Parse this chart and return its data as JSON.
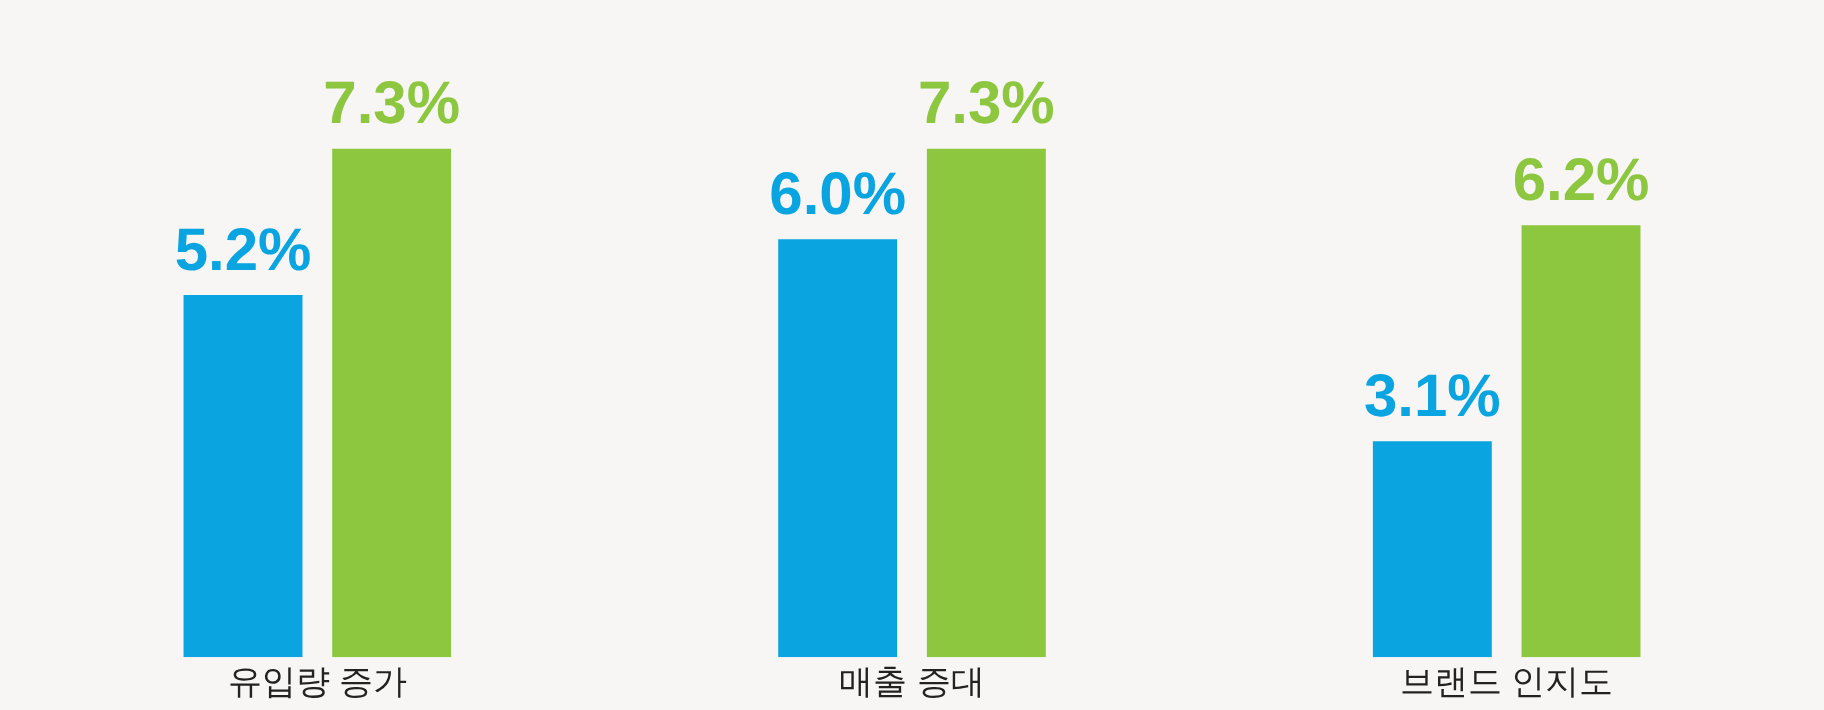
{
  "chart_data": {
    "type": "bar",
    "categories": [
      "유입량 증가",
      "매출 증대",
      "브랜드 인지도"
    ],
    "series": [
      {
        "color": "#0aa5e0",
        "values": [
          5.2,
          6.0,
          3.1
        ],
        "value_labels": [
          "5.2%",
          "6.0%",
          "3.1%"
        ]
      },
      {
        "color": "#8dc63f",
        "values": [
          7.3,
          7.3,
          6.2
        ],
        "value_labels": [
          "7.3%",
          "7.3%",
          "6.2%"
        ]
      }
    ],
    "grid": false,
    "legend": false,
    "tick_labels": "x"
  }
}
